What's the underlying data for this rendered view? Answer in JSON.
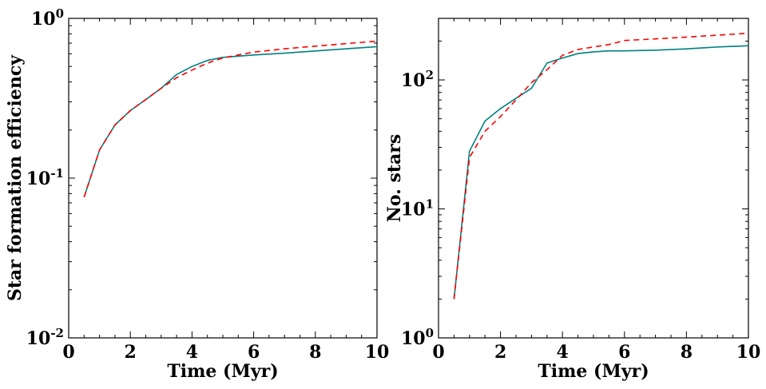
{
  "chart_data": [
    {
      "type": "line",
      "xlabel": "Time (Myr)",
      "ylabel": "Star formation efficiency",
      "xlim": [
        0,
        10
      ],
      "ylim": [
        0.01,
        1
      ],
      "yscale": "log",
      "x_ticks": [
        {
          "value": 0,
          "label": "0"
        },
        {
          "value": 2,
          "label": "2"
        },
        {
          "value": 4,
          "label": "4"
        },
        {
          "value": 6,
          "label": "6"
        },
        {
          "value": 8,
          "label": "8"
        },
        {
          "value": 10,
          "label": "10"
        }
      ],
      "y_ticks": [
        {
          "value": 0.01,
          "base": "10",
          "exp": "-2"
        },
        {
          "value": 0.1,
          "base": "10",
          "exp": "-1"
        },
        {
          "value": 1,
          "base": "10",
          "exp": "0"
        }
      ],
      "series": [
        {
          "name": "solid",
          "style": "solid",
          "color": "#008080",
          "x": [
            0.5,
            1,
            1.5,
            2,
            2.5,
            3,
            3.5,
            4,
            4.5,
            5,
            5.5,
            6,
            7,
            8,
            9,
            10
          ],
          "y": [
            0.076,
            0.15,
            0.215,
            0.265,
            0.31,
            0.365,
            0.445,
            0.5,
            0.545,
            0.57,
            0.58,
            0.59,
            0.605,
            0.625,
            0.645,
            0.665
          ]
        },
        {
          "name": "dashed",
          "style": "dashed",
          "color": "#ff0000",
          "x": [
            0.5,
            1,
            1.5,
            2,
            2.5,
            3,
            3.5,
            4,
            4.5,
            5,
            5.5,
            6,
            7,
            8,
            9,
            10
          ],
          "y": [
            0.076,
            0.15,
            0.215,
            0.265,
            0.31,
            0.365,
            0.425,
            0.475,
            0.525,
            0.565,
            0.59,
            0.615,
            0.645,
            0.67,
            0.695,
            0.72
          ]
        }
      ]
    },
    {
      "type": "line",
      "xlabel": "Time (Myr)",
      "ylabel": "No. stars",
      "xlim": [
        0,
        10
      ],
      "ylim": [
        1,
        300
      ],
      "yscale": "log",
      "x_ticks": [
        {
          "value": 0,
          "label": "0"
        },
        {
          "value": 2,
          "label": "2"
        },
        {
          "value": 4,
          "label": "4"
        },
        {
          "value": 6,
          "label": "6"
        },
        {
          "value": 8,
          "label": "8"
        },
        {
          "value": 10,
          "label": "10"
        }
      ],
      "y_ticks": [
        {
          "value": 1,
          "base": "10",
          "exp": "0"
        },
        {
          "value": 10,
          "base": "10",
          "exp": "1"
        },
        {
          "value": 100,
          "base": "10",
          "exp": "2"
        }
      ],
      "series": [
        {
          "name": "solid",
          "style": "solid",
          "color": "#008080",
          "x": [
            0.5,
            1,
            1.5,
            2,
            2.5,
            3,
            3.5,
            4,
            4.5,
            5,
            5.5,
            6,
            7,
            8,
            9,
            10
          ],
          "y": [
            2,
            28,
            48,
            60,
            72,
            86,
            135,
            148,
            160,
            165,
            168,
            168,
            170,
            174,
            180,
            184
          ]
        },
        {
          "name": "dashed",
          "style": "dashed",
          "color": "#ff0000",
          "x": [
            0.5,
            1,
            1.5,
            2,
            2.5,
            3,
            3.5,
            4,
            4.5,
            5,
            5.5,
            6,
            7,
            8,
            9,
            10
          ],
          "y": [
            2,
            25,
            40,
            52,
            70,
            95,
            120,
            155,
            172,
            180,
            188,
            202,
            208,
            215,
            222,
            230
          ]
        }
      ]
    }
  ]
}
